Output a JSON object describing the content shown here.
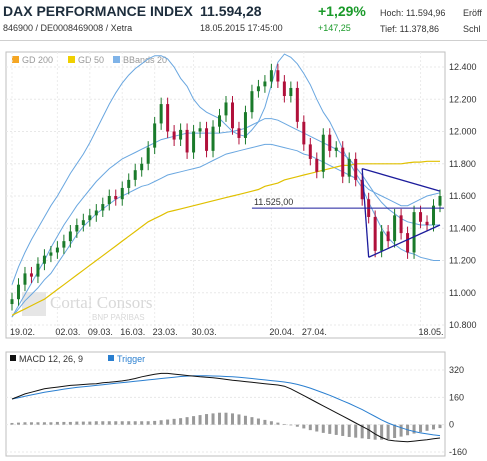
{
  "header": {
    "title": "DAX PERFORMANCE INDEX",
    "subtitle": "846900 / DE0008469008 / Xetra",
    "price": "11.594,28",
    "datetime": "18.05.2015 17:45:00",
    "change_pct": "+1,29%",
    "change_abs": "+147,25",
    "high_label": "Hoch: 11.594,96",
    "low_label": "Tief: 11.378,86",
    "open_label": "Eröff",
    "close_label": "Schl"
  },
  "legend": [
    {
      "name": "GD 200",
      "color": "#f5a623"
    },
    {
      "name": "GD 50",
      "color": "#f0d000"
    },
    {
      "name": "BBands 20",
      "color": "#7fb3e8"
    }
  ],
  "watermark": {
    "brand": "Cortal Consors",
    "sub": "BNP PARIBAS"
  },
  "price_label": "11.525,00",
  "macd_legend": {
    "macd": "MACD 12, 26, 9",
    "trigger": "Trigger"
  },
  "colors": {
    "up": "#1a7a2a",
    "down": "#b0103a",
    "bb": "#6aa7e0",
    "gd50": "#e0c000",
    "trend": "#1c1c9c",
    "macd": "#111111",
    "trigger": "#2a7fd0",
    "hist": "#999999"
  },
  "chart_data": [
    {
      "type": "candlestick",
      "x_tick_labels": [
        "19.02.",
        "02.03.",
        "09.03.",
        "16.03.",
        "23.03.",
        "30.03.",
        "20.04.",
        "27.04.",
        "18.05."
      ],
      "y_tick_labels": [
        "12.400",
        "12.200",
        "12.000",
        "11.800",
        "11.600",
        "11.400",
        "11.200",
        "11.000",
        "10.800"
      ],
      "ylim": [
        10800,
        12400
      ],
      "closes": [
        10960,
        11050,
        11120,
        11100,
        11180,
        11230,
        11250,
        11280,
        11320,
        11380,
        11420,
        11450,
        11480,
        11510,
        11550,
        11600,
        11580,
        11650,
        11700,
        11760,
        11800,
        11900,
        12050,
        12170,
        12000,
        11950,
        12010,
        11870,
        12000,
        12020,
        11880,
        12030,
        12100,
        12180,
        12020,
        11960,
        12120,
        12250,
        12280,
        12310,
        12380,
        12310,
        12220,
        12270,
        12060,
        11920,
        11830,
        11750,
        11980,
        11880,
        11900,
        11720,
        11830,
        11700,
        11580,
        11470,
        11260,
        11380,
        11320,
        11480,
        11370,
        11250,
        11500,
        11440,
        11420,
        11540,
        11600
      ],
      "bbands_upper": [
        11050,
        11160,
        11250,
        11330,
        11400,
        11470,
        11540,
        11600,
        11670,
        11740,
        11800,
        11860,
        11930,
        12010,
        12090,
        12170,
        12240,
        12300,
        12350,
        12390,
        12420,
        12450,
        12470,
        12470,
        12450,
        12400,
        12330,
        12280,
        12200,
        12150,
        12120,
        12100,
        12080,
        12040,
        12000,
        11980,
        11970,
        12010,
        12060,
        12150,
        12290,
        12430,
        12480,
        12460,
        12420,
        12360,
        12290,
        12200,
        12120,
        12060,
        11980,
        11890,
        11810,
        11740,
        11680,
        11640,
        11620,
        11600,
        11580,
        11560,
        11540,
        11540,
        11560,
        11580,
        11600,
        11610,
        11620
      ],
      "bbands_mid": [
        10850,
        10920,
        10990,
        11060,
        11130,
        11200,
        11280,
        11350,
        11420,
        11480,
        11540,
        11590,
        11640,
        11690,
        11730,
        11770,
        11800,
        11830,
        11850,
        11870,
        11890,
        11910,
        11930,
        11950,
        11960,
        11970,
        11980,
        11990,
        11990,
        11990,
        11990,
        11990,
        11990,
        11995,
        12000,
        12010,
        12020,
        12040,
        12060,
        12080,
        12080,
        12070,
        12050,
        12030,
        12010,
        11990,
        11970,
        11950,
        11930,
        11910,
        11890,
        11860,
        11830,
        11780,
        11730,
        11670,
        11610,
        11560,
        11520,
        11490,
        11460,
        11440,
        11430,
        11420,
        11420,
        11420,
        11420
      ],
      "bbands_lower": [
        10850,
        10900,
        10950,
        10990,
        11030,
        11080,
        11120,
        11180,
        11240,
        11300,
        11360,
        11410,
        11450,
        11490,
        11520,
        11550,
        11580,
        11600,
        11620,
        11640,
        11660,
        11670,
        11690,
        11710,
        11730,
        11740,
        11750,
        11760,
        11770,
        11780,
        11800,
        11820,
        11840,
        11860,
        11870,
        11880,
        11890,
        11900,
        11910,
        11920,
        11920,
        11910,
        11900,
        11890,
        11880,
        11860,
        11850,
        11830,
        11810,
        11790,
        11770,
        11750,
        11730,
        11710,
        11650,
        11560,
        11480,
        11400,
        11340,
        11300,
        11270,
        11250,
        11240,
        11220,
        11210,
        11200,
        11200
      ],
      "gd50": [
        10860,
        10880,
        10900,
        10920,
        10940,
        10960,
        10990,
        11020,
        11050,
        11080,
        11110,
        11140,
        11170,
        11200,
        11230,
        11260,
        11290,
        11320,
        11350,
        11380,
        11410,
        11440,
        11460,
        11480,
        11500,
        11510,
        11520,
        11530,
        11540,
        11550,
        11560,
        11570,
        11580,
        11590,
        11600,
        11610,
        11620,
        11630,
        11640,
        11660,
        11670,
        11680,
        11700,
        11710,
        11720,
        11730,
        11740,
        11750,
        11760,
        11770,
        11780,
        11790,
        11790,
        11800,
        11800,
        11800,
        11800,
        11800,
        11800,
        11800,
        11800,
        11805,
        11810,
        11810,
        11815,
        11815,
        11815
      ],
      "trendline_upper": [
        {
          "i": 54,
          "v": 11770
        },
        {
          "i": 66,
          "v": 11630
        }
      ],
      "trendline_lower": [
        {
          "i": 55,
          "v": 11220
        },
        {
          "i": 66,
          "v": 11420
        }
      ],
      "horizontal_level": 11525
    },
    {
      "type": "line",
      "y_tick_labels": [
        "320",
        "160",
        "0",
        "-160"
      ],
      "ylim": [
        -160,
        320
      ],
      "series": [
        {
          "name": "MACD 12, 26, 9",
          "values": [
            150,
            165,
            180,
            190,
            200,
            210,
            215,
            220,
            225,
            230,
            232,
            235,
            238,
            240,
            245,
            248,
            252,
            256,
            262,
            270,
            280,
            288,
            295,
            300,
            300,
            296,
            292,
            288,
            284,
            280,
            278,
            275,
            270,
            265,
            260,
            256,
            252,
            248,
            244,
            240,
            236,
            232,
            225,
            210,
            190,
            170,
            150,
            130,
            110,
            90,
            70,
            50,
            30,
            10,
            -10,
            -30,
            -55,
            -75,
            -90,
            -95,
            -98,
            -100,
            -96,
            -92,
            -88,
            -82,
            -78
          ]
        },
        {
          "name": "Trigger",
          "values": [
            150,
            158,
            166,
            174,
            182,
            190,
            196,
            202,
            208,
            213,
            218,
            222,
            226,
            230,
            234,
            238,
            242,
            246,
            250,
            254,
            258,
            262,
            266,
            270,
            274,
            278,
            282,
            284,
            286,
            286,
            286,
            285,
            284,
            282,
            280,
            277,
            274,
            270,
            266,
            262,
            258,
            254,
            250,
            244,
            236,
            226,
            214,
            200,
            186,
            172,
            156,
            140,
            124,
            106,
            88,
            68,
            48,
            28,
            10,
            -5,
            -18,
            -30,
            -40,
            -48,
            -54,
            -60,
            -64
          ]
        },
        {
          "name": "histogram",
          "values": [
            10,
            12,
            14,
            14,
            14,
            14,
            14,
            16,
            16,
            16,
            18,
            18,
            18,
            20,
            20,
            20,
            20,
            20,
            20,
            20,
            20,
            20,
            22,
            26,
            30,
            34,
            38,
            44,
            50,
            56,
            62,
            66,
            70,
            70,
            66,
            60,
            52,
            44,
            36,
            28,
            20,
            12,
            4,
            -4,
            -12,
            -22,
            -32,
            -40,
            -48,
            -54,
            -60,
            -66,
            -72,
            -76,
            -80,
            -84,
            -88,
            -88,
            -84,
            -78,
            -70,
            -62,
            -52,
            -44,
            -36,
            -28,
            -20
          ]
        }
      ]
    }
  ]
}
